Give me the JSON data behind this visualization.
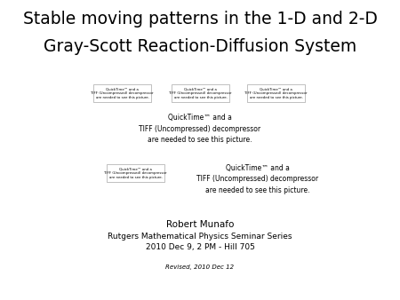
{
  "title_line1": "Stable moving patterns in the 1-D and 2-D",
  "title_line2": "Gray-Scott Reaction-Diffusion System",
  "author": "Robert Munafo",
  "affiliation": "Rutgers Mathematical Physics Seminar Series",
  "date": "2010 Dec 9, 2 PM - Hill 705",
  "revised": "Revised, 2010 Dec 12",
  "quicktime_text1": "QuickTime™ and a\nTIFF (Uncompressed) decompressor\nare needed to see this picture.",
  "quicktime_text2": "QuickTime™ and a\nTIFF (Uncompressed) decompressor\nare needed to see this picture.",
  "placeholder_small": "QuickTime™ and a\nTIFF (Uncompressed) decompressor\nare needed to see this picture.",
  "bg_color": "#ffffff",
  "text_color": "#000000",
  "border_color": "#909090",
  "title_fontsize": 13.5,
  "body_fontsize": 5.5,
  "small_fontsize": 2.8,
  "author_fontsize": 7.5,
  "seminar_fontsize": 6.5,
  "revised_fontsize": 5.0
}
